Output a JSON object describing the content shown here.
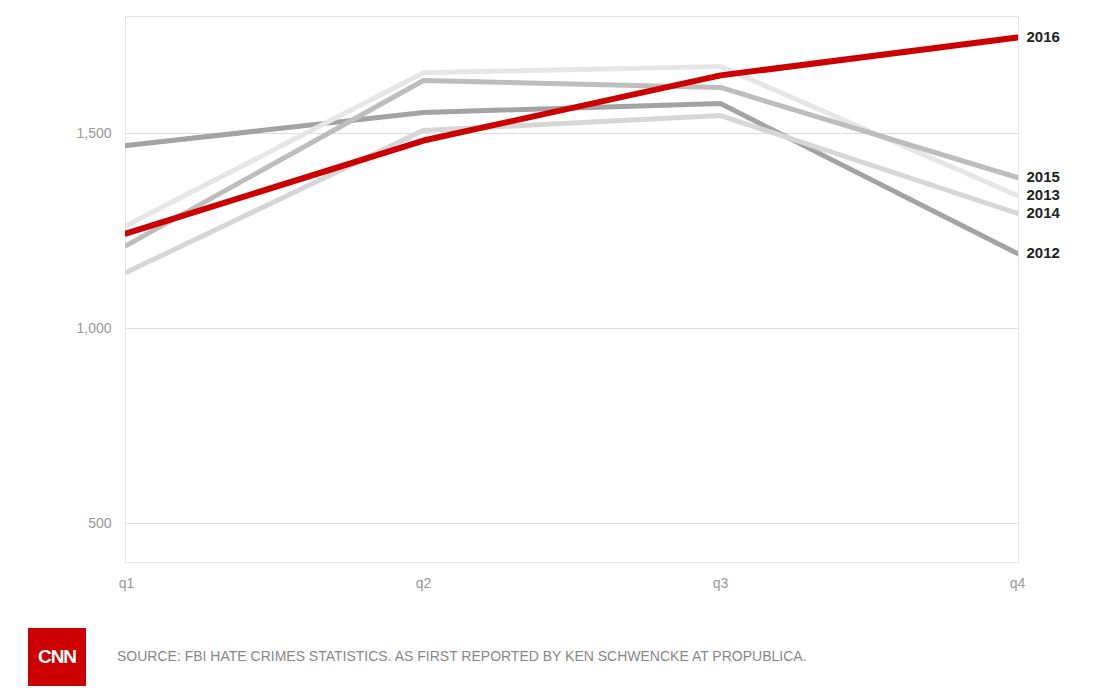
{
  "chart_data": {
    "type": "line",
    "categories": [
      "q1",
      "q2",
      "q3",
      "q4"
    ],
    "series": [
      {
        "name": "2016",
        "color": "#cc0000",
        "values": [
          1244,
          1482,
          1649,
          1746
        ]
      },
      {
        "name": "2015",
        "color": "#bdbdbd",
        "values": [
          1213,
          1636,
          1618,
          1387
        ]
      },
      {
        "name": "2013",
        "color": "#e6e6e6",
        "values": [
          1264,
          1656,
          1672,
          1341
        ]
      },
      {
        "name": "2014",
        "color": "#d6d6d6",
        "values": [
          1144,
          1508,
          1546,
          1295
        ]
      },
      {
        "name": "2012",
        "color": "#a3a3a3",
        "values": [
          1469,
          1554,
          1577,
          1192
        ]
      }
    ],
    "ylim": [
      400,
      1800
    ],
    "yticks": [
      500,
      {
        "value": 1000,
        "label": "1,000"
      },
      {
        "value": 1500,
        "label": "1,500"
      }
    ],
    "grid": true,
    "source": "SOURCE: FBI HATE CRIMES STATISTICS. AS FIRST REPORTED BY KEN SCHWENCKE AT PROPUBLICA.",
    "logo": "CNN"
  }
}
